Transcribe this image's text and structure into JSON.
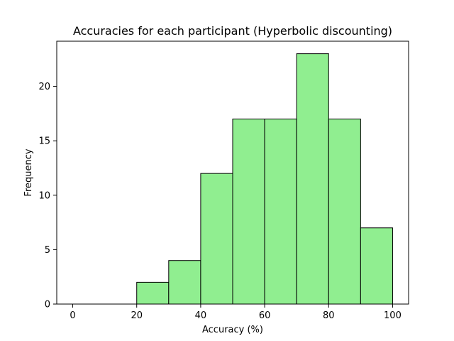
{
  "chart_data": {
    "type": "bar",
    "title": "Accuracies for each participant (Hyperbolic discounting)",
    "xlabel": "Accuracy (%)",
    "ylabel": "Frequency",
    "bins": [
      {
        "start": 0,
        "end": 10,
        "count": 0
      },
      {
        "start": 10,
        "end": 20,
        "count": 0
      },
      {
        "start": 20,
        "end": 30,
        "count": 2
      },
      {
        "start": 30,
        "end": 40,
        "count": 4
      },
      {
        "start": 40,
        "end": 50,
        "count": 12
      },
      {
        "start": 50,
        "end": 60,
        "count": 17
      },
      {
        "start": 60,
        "end": 70,
        "count": 17
      },
      {
        "start": 70,
        "end": 80,
        "count": 23
      },
      {
        "start": 80,
        "end": 90,
        "count": 17
      },
      {
        "start": 90,
        "end": 100,
        "count": 7
      }
    ],
    "xlim": [
      -5,
      105
    ],
    "ylim": [
      0,
      24.15
    ],
    "xticks": [
      0,
      20,
      40,
      60,
      80,
      100
    ],
    "yticks": [
      0,
      5,
      10,
      15,
      20
    ],
    "bar_color": "#90ee90",
    "edge_color": "#000000",
    "grid": false,
    "legend": "none"
  }
}
